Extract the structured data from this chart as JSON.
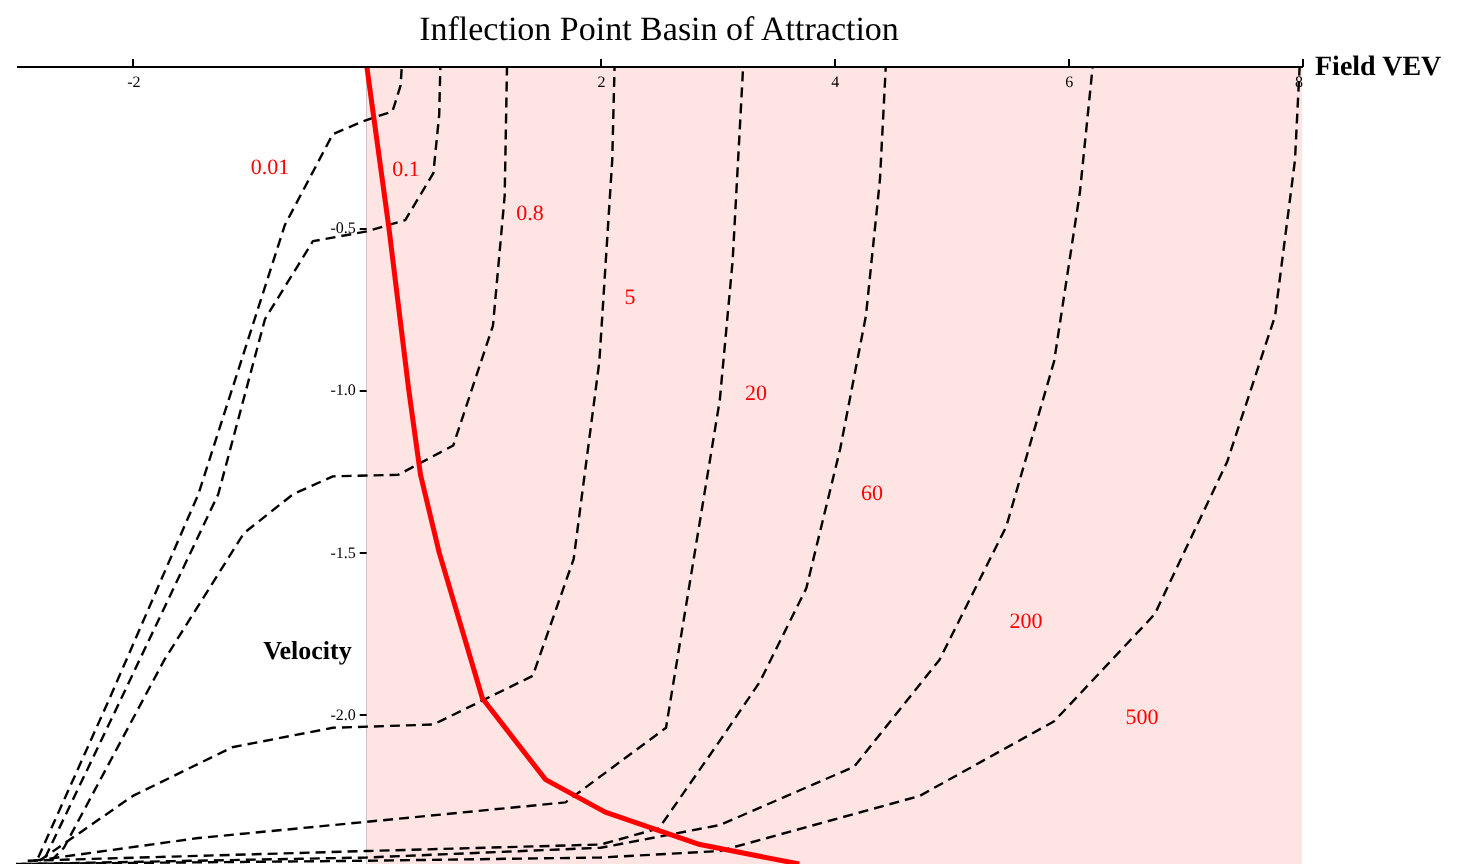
{
  "chart_data": {
    "type": "line",
    "title": "Inflection Point Basin of Attraction",
    "xlabel": "Field VEV",
    "ylabel": "Velocity",
    "xlim": [
      -3.0,
      8.0
    ],
    "ylim": [
      -2.46,
      0
    ],
    "xticks": [
      -2,
      2,
      4,
      6,
      8
    ],
    "yticks": [
      -0.5,
      {
        "value": -1.0,
        "label": "-1.0"
      },
      {
        "value": -1.5,
        "label": "-1.5"
      },
      {
        "value": -2.0,
        "label": "-2.0"
      }
    ],
    "grid": false,
    "marker": "none",
    "line_style": "dashed",
    "bands": [
      {
        "axis": "x",
        "from": 0,
        "to": 8,
        "color": "#ffe4e4"
      }
    ],
    "series": [
      {
        "color": "#000000",
        "x": [
          -2.81,
          -2.2,
          -1.44,
          -0.7,
          -0.29,
          -0.03,
          0.22,
          0.29,
          0.3
        ],
        "values": [
          -2.44,
          -1.95,
          -1.32,
          -0.49,
          -0.21,
          -0.17,
          -0.14,
          -0.06,
          0
        ]
      },
      {
        "color": "#000000",
        "x": [
          -2.75,
          -2.1,
          -1.27,
          -0.87,
          -0.46,
          0,
          0.33,
          0.57,
          0.62,
          0.63
        ],
        "values": [
          -2.44,
          -1.95,
          -1.32,
          -0.78,
          -0.54,
          -0.51,
          -0.475,
          -0.33,
          -0.15,
          0
        ]
      },
      {
        "color": "#000000",
        "x": [
          -2.7,
          -2.59,
          -1.73,
          -1.05,
          -0.63,
          -0.29,
          0.27,
          0.74,
          1.08,
          1.18,
          1.2
        ],
        "values": [
          -2.45,
          -2.41,
          -1.83,
          -1.44,
          -1.32,
          -1.265,
          -1.26,
          -1.17,
          -0.8,
          -0.4,
          0
        ]
      },
      {
        "color": "#000000",
        "x": [
          -2.8,
          -2.0,
          -1.15,
          -0.29,
          0.57,
          1.42,
          1.77,
          1.99,
          2.1,
          2.12
        ],
        "values": [
          -2.45,
          -2.25,
          -2.1,
          -2.04,
          -2.03,
          -1.88,
          -1.52,
          -0.91,
          -0.29,
          0
        ]
      },
      {
        "color": "#000000",
        "x": [
          -2.85,
          -1.44,
          0,
          1.7,
          2.56,
          3.02,
          3.13,
          3.22
        ],
        "values": [
          -2.45,
          -2.38,
          -2.33,
          -2.27,
          -2.04,
          -1.03,
          -0.6,
          0
        ]
      },
      {
        "color": "#000000",
        "x": [
          -2.9,
          0,
          2.0,
          2.5,
          3.02,
          3.36,
          3.76,
          4.05,
          4.27,
          4.39,
          4.44
        ],
        "values": [
          -2.45,
          -2.42,
          -2.4,
          -2.35,
          -2.08,
          -1.9,
          -1.61,
          -1.18,
          -0.77,
          -0.35,
          0
        ]
      },
      {
        "color": "#000000",
        "x": [
          -2.95,
          0,
          2.0,
          3.02,
          4.17,
          4.9,
          5.47,
          5.88,
          6.1,
          6.21
        ],
        "values": [
          -2.46,
          -2.44,
          -2.41,
          -2.34,
          -2.16,
          -1.83,
          -1.42,
          -0.91,
          -0.39,
          0
        ]
      },
      {
        "color": "#000000",
        "x": [
          -3.0,
          0,
          2.0,
          3.02,
          4.73,
          5.88,
          6.74,
          7.36,
          7.77,
          7.94,
          7.98
        ],
        "values": [
          -2.46,
          -2.45,
          -2.44,
          -2.42,
          -2.25,
          -2.02,
          -1.69,
          -1.22,
          -0.77,
          -0.29,
          0
        ]
      },
      {
        "color": "#ff0000",
        "line_style": "solid",
        "x": [
          0,
          0.19,
          0.36,
          0.46,
          0.62,
          0.99,
          1.53,
          2.04,
          2.85,
          3.7
        ],
        "values": [
          0,
          -0.5,
          -1.0,
          -1.26,
          -1.5,
          -1.95,
          -2.2,
          -2.3,
          -2.4,
          -2.46
        ]
      }
    ],
    "annotations": [
      "0.01",
      "0.1",
      "0.8",
      "5",
      "20",
      "60",
      "200",
      "500"
    ]
  }
}
